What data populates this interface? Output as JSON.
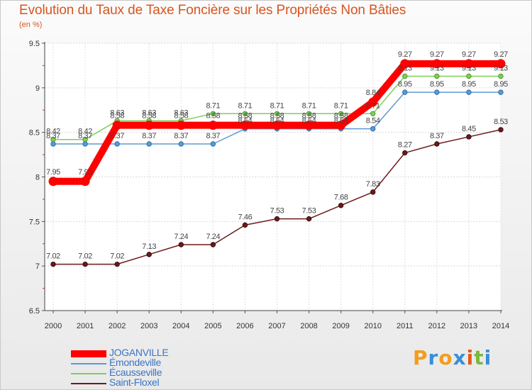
{
  "title": "Evolution du Taux de Taxe Foncière sur les Propriétés Non Bâties",
  "subtitle": "(en %)",
  "logo": {
    "text": "Proxiti",
    "letters": [
      "P",
      "r",
      "o",
      "x",
      "i",
      "t",
      "i"
    ],
    "colors": [
      "#f39c1e",
      "#3a8fd6",
      "#f39c1e",
      "#3a8fd6",
      "#e05a1c",
      "#7ab83a",
      "#3a8fd6"
    ]
  },
  "chart_data": {
    "type": "line",
    "title": "Evolution du Taux de Taxe Foncière sur les Propriétés Non Bâties",
    "ylabel": "(en %)",
    "xlabel": "",
    "ylim": [
      6.5,
      9.5
    ],
    "yticks": [
      "6.5",
      "7",
      "7.5",
      "8",
      "8.5",
      "9",
      "9.5"
    ],
    "x": [
      "2000",
      "2001",
      "2002",
      "2003",
      "2004",
      "2005",
      "2006",
      "2007",
      "2008",
      "2009",
      "2010",
      "2011",
      "2012",
      "2013",
      "2014"
    ],
    "series": [
      {
        "name": "JOGANVILLE",
        "color": "#ff0000",
        "values": [
          7.95,
          7.95,
          8.58,
          8.58,
          8.58,
          8.58,
          8.58,
          8.58,
          8.58,
          8.58,
          8.84,
          9.27,
          9.27,
          9.27,
          9.27
        ],
        "labels": [
          "7.95",
          "7.95",
          "8.58",
          "8.58",
          "8.58",
          "8.58",
          "8.58",
          "8.58",
          "8.58",
          "8.58",
          "8.84",
          "9.27",
          "9.27",
          "9.27",
          "9.27"
        ]
      },
      {
        "name": "Émondeville",
        "color": "#5c9ad2",
        "values": [
          8.37,
          8.37,
          8.37,
          8.37,
          8.37,
          8.37,
          8.54,
          8.54,
          8.54,
          8.54,
          8.54,
          8.95,
          8.95,
          8.95,
          8.95
        ],
        "labels": [
          "8.37",
          "8.37",
          "8.37",
          "8.37",
          "8.37",
          "8.37",
          "8.54",
          "8.54",
          "8.54",
          "8.54",
          "8.54",
          "8.95",
          "8.95",
          "8.95",
          "8.95"
        ]
      },
      {
        "name": "Écausseville",
        "color": "#7fcf5a",
        "values": [
          8.42,
          8.42,
          8.63,
          8.63,
          8.63,
          8.71,
          8.71,
          8.71,
          8.71,
          8.71,
          8.71,
          9.13,
          9.13,
          9.13,
          9.13
        ],
        "labels": [
          "8.42",
          "8.42",
          "8.63",
          "8.63",
          "8.63",
          "8.71",
          "8.71",
          "8.71",
          "8.71",
          "8.71",
          "8.71",
          "9.13",
          "9.13",
          "9.13",
          "9.13"
        ]
      },
      {
        "name": "Saint-Floxel",
        "color": "#6b1a1a",
        "values": [
          7.02,
          7.02,
          7.02,
          7.13,
          7.24,
          7.24,
          7.46,
          7.53,
          7.53,
          7.68,
          7.83,
          8.27,
          8.37,
          8.45,
          8.53
        ],
        "labels": [
          "7.02",
          "7.02",
          "7.02",
          "7.13",
          "7.24",
          "7.24",
          "7.46",
          "7.53",
          "7.53",
          "7.68",
          "7.83",
          "8.27",
          "8.37",
          "8.45",
          "8.53"
        ]
      }
    ],
    "grid": true,
    "legend": "bottom-left"
  }
}
